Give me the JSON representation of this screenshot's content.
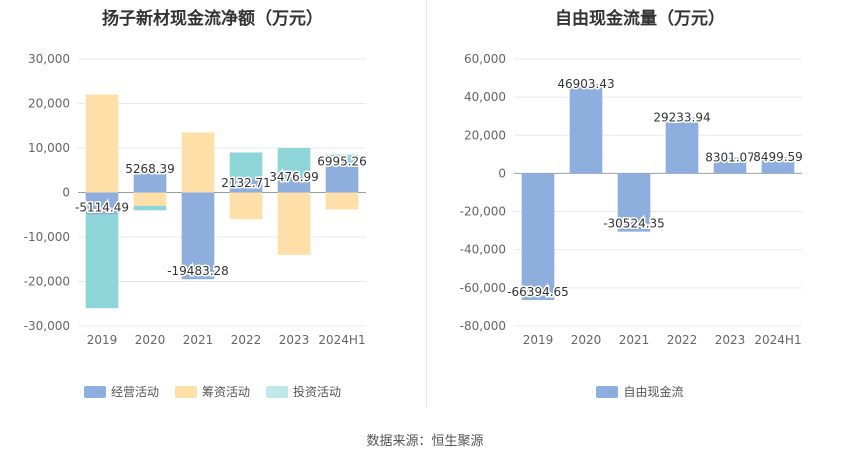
{
  "left": {
    "title": "扬子新材现金流净额（万元）",
    "legend": [
      {
        "name": "经营活动",
        "color": "#8eaedd"
      },
      {
        "name": "筹资活动",
        "color": "#ffdfa8"
      },
      {
        "name": "投资活动",
        "color": "#bfe8ea"
      }
    ]
  },
  "right": {
    "title": "自由现金流量（万元）",
    "legend": [
      {
        "name": "自由现金流",
        "color": "#8eaedd"
      }
    ]
  },
  "source": "数据来源：恒生聚源",
  "chart_data": [
    {
      "type": "bar",
      "stacked": true,
      "title": "扬子新材现金流净额（万元）",
      "categories": [
        "2019",
        "2020",
        "2021",
        "2022",
        "2023",
        "2024H1"
      ],
      "ylim": [
        -30000,
        30000
      ],
      "yticks": [
        30000,
        20000,
        10000,
        0,
        -10000,
        -20000,
        -30000
      ],
      "ytick_labels": [
        "30,000",
        "20,000",
        "10,000",
        "0",
        "-10,000",
        "-20,000",
        "-30,000"
      ],
      "grid": true,
      "legend_position": "bottom",
      "series": [
        {
          "name": "经营活动",
          "color": "#8eaedd",
          "values": [
            -5000,
            5000,
            -19500,
            3000,
            3500,
            7000
          ]
        },
        {
          "name": "筹资活动",
          "color": "#ffdfa8",
          "values": [
            22000,
            -3000,
            13500,
            -6000,
            -14000,
            -3800
          ]
        },
        {
          "name": "投资活动",
          "color": "#8dd5d8",
          "values": [
            -21000,
            -1000,
            0,
            6000,
            6500,
            1500
          ]
        }
      ],
      "net_labels": [
        "-5114.49",
        "5268.39",
        "-19483.28",
        "2132.71",
        "3476.99",
        "6995.26"
      ],
      "net_values": [
        -5114.49,
        5268.39,
        -19483.28,
        2132.71,
        3476.99,
        6995.26
      ]
    },
    {
      "type": "bar",
      "title": "自由现金流量（万元）",
      "categories": [
        "2019",
        "2020",
        "2021",
        "2022",
        "2023",
        "2024H1"
      ],
      "ylim": [
        -80000,
        60000
      ],
      "yticks": [
        60000,
        40000,
        20000,
        0,
        -20000,
        -40000,
        -60000,
        -80000
      ],
      "ytick_labels": [
        "60,000",
        "40,000",
        "20,000",
        "0",
        "-20,000",
        "-40,000",
        "-60,000",
        "-80,000"
      ],
      "grid": true,
      "legend_position": "bottom",
      "series": [
        {
          "name": "自由现金流",
          "color": "#8eaedd",
          "values": [
            -66394.65,
            46903.43,
            -30524.35,
            29233.94,
            8301.07,
            8499.59
          ]
        }
      ],
      "data_labels": [
        "-66394.65",
        "46903.43",
        "-30524.35",
        "29233.94",
        "8301.07",
        "8499.59"
      ]
    }
  ]
}
